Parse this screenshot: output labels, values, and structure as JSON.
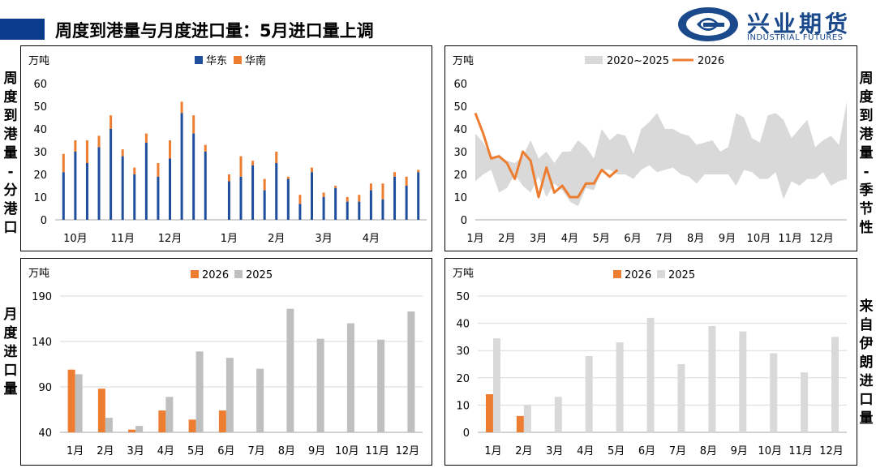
{
  "header": {
    "title": "周度到港量与月度进口量：5月进口量上调"
  },
  "logo": {
    "cn": "兴业期货",
    "en": "INDUSTRIAL FUTURES",
    "icon": "industrial-futures-logo-icon"
  },
  "side_labels": {
    "top_left": [
      "周",
      "度",
      "到",
      "港",
      "量",
      "-",
      "分",
      "港",
      "口"
    ],
    "top_right": [
      "周",
      "度",
      "到",
      "港",
      "量",
      "-",
      "季",
      "节",
      "性"
    ],
    "bottom_left": [
      "月",
      "度",
      "进",
      "口",
      "量"
    ],
    "bottom_right": [
      "来",
      "自",
      "伊",
      "朗",
      "进",
      "口",
      "量"
    ]
  },
  "colors": {
    "east": "#1f4e9c",
    "south": "#ed7d31",
    "y2026": "#ed7d31",
    "y2025_gray": "#bfbfbf",
    "y2025_light": "#d9d9d9",
    "band": "#d9d9d9"
  },
  "chart_data": [
    {
      "id": "weekly_by_port",
      "type": "bar",
      "stacked": true,
      "unit_label": "万吨",
      "ylim": [
        0,
        60
      ],
      "yticks": [
        0,
        10,
        20,
        30,
        40,
        50,
        60
      ],
      "x_labels": [
        "10月",
        "11月",
        "12月",
        "1月",
        "2月",
        "3月",
        "4月"
      ],
      "x_label_index": [
        1,
        5,
        9,
        14,
        18,
        22,
        26
      ],
      "legend": [
        "华东",
        "华南"
      ],
      "series": [
        {
          "name": "华东",
          "values": [
            21,
            30,
            25,
            32,
            40,
            28,
            20,
            34,
            19,
            27,
            47,
            38,
            30,
            0,
            17,
            19,
            24,
            13,
            25,
            18,
            7,
            21,
            10,
            14,
            8,
            8,
            13,
            9,
            19,
            15,
            21
          ]
        },
        {
          "name": "华南",
          "values": [
            8,
            5,
            10,
            5,
            6,
            3,
            3,
            4,
            6,
            8,
            5,
            8,
            3,
            0,
            3,
            9,
            2,
            5,
            5,
            1,
            4,
            2,
            2,
            1,
            2,
            3,
            3,
            7,
            2,
            4,
            1
          ]
        }
      ]
    },
    {
      "id": "weekly_seasonal",
      "type": "area",
      "unit_label": "万吨",
      "ylim": [
        0,
        60
      ],
      "yticks": [
        0,
        10,
        20,
        30,
        40,
        50,
        60
      ],
      "x_labels": [
        "1月",
        "2月",
        "3月",
        "4月",
        "5月",
        "6月",
        "7月",
        "8月",
        "9月",
        "10月",
        "11月",
        "12月"
      ],
      "legend": [
        "2020~2025",
        "2026"
      ],
      "band_upper": [
        38,
        34,
        28,
        28,
        26,
        25,
        28,
        35,
        27,
        30,
        25,
        30,
        30,
        35,
        32,
        27,
        40,
        35,
        38,
        37,
        29,
        40,
        43,
        47,
        40,
        40,
        38,
        37,
        33,
        34,
        35,
        30,
        32,
        47,
        45,
        36,
        34,
        46,
        47,
        44,
        36,
        40,
        44,
        32,
        35,
        37,
        33,
        52
      ],
      "band_lower": [
        17,
        20,
        22,
        12,
        14,
        20,
        15,
        12,
        19,
        10,
        16,
        13,
        8,
        6,
        14,
        13,
        22,
        22,
        20,
        20,
        18,
        22,
        24,
        21,
        22,
        23,
        20,
        19,
        16,
        20,
        20,
        20,
        20,
        15,
        22,
        21,
        18,
        18,
        21,
        9,
        17,
        15,
        18,
        18,
        21,
        15,
        17,
        18
      ],
      "series": [
        {
          "name": "2026",
          "values": [
            47,
            38,
            27,
            28,
            25,
            18,
            30,
            26,
            10,
            23,
            12,
            15,
            10,
            10,
            16,
            16,
            22,
            19,
            22
          ]
        }
      ]
    },
    {
      "id": "monthly_import",
      "type": "bar",
      "unit_label": "万吨",
      "ylim": [
        40,
        190
      ],
      "yticks": [
        40,
        90,
        140,
        190
      ],
      "categories": [
        "1月",
        "2月",
        "3月",
        "4月",
        "5月",
        "6月",
        "7月",
        "8月",
        "9月",
        "10月",
        "11月",
        "12月"
      ],
      "legend": [
        "2026",
        "2025"
      ],
      "series": [
        {
          "name": "2026",
          "values": [
            109,
            88,
            43,
            64,
            54,
            64,
            null,
            null,
            null,
            null,
            null,
            null
          ]
        },
        {
          "name": "2025",
          "values": [
            104,
            56,
            47,
            79,
            129,
            122,
            110,
            176,
            143,
            160,
            142,
            173
          ]
        }
      ]
    },
    {
      "id": "iran_import",
      "type": "bar",
      "unit_label": "万吨",
      "ylim": [
        0,
        50
      ],
      "yticks": [
        0,
        10,
        20,
        30,
        40,
        50
      ],
      "categories": [
        "1月",
        "2月",
        "3月",
        "4月",
        "5月",
        "6月",
        "7月",
        "8月",
        "9月",
        "10月",
        "11月",
        "12月"
      ],
      "legend": [
        "2026",
        "2025"
      ],
      "series": [
        {
          "name": "2026",
          "values": [
            14,
            6,
            null,
            null,
            null,
            null,
            null,
            null,
            null,
            null,
            null,
            null
          ]
        },
        {
          "name": "2025",
          "values": [
            34.5,
            10,
            13,
            28,
            33,
            42,
            25,
            39,
            37,
            29,
            22,
            35
          ]
        }
      ]
    }
  ]
}
